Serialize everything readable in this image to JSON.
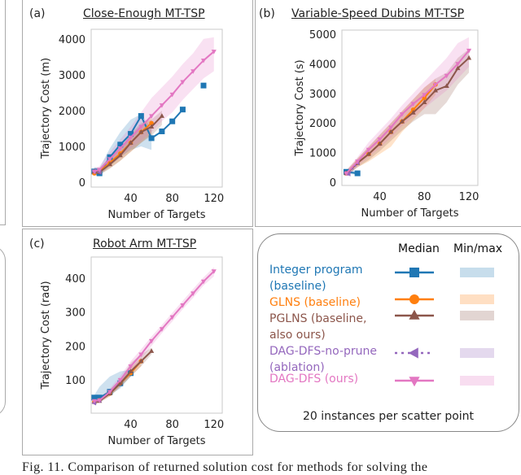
{
  "caption": "Fig. 11.  Comparison of returned solution cost for methods for solving the",
  "colors": {
    "ip": "#1f77b4",
    "glns": "#ff7f0e",
    "pglns": "#8c564b",
    "noprune": "#9467bd",
    "dagdfs": "#e377c2"
  },
  "legend": {
    "median_header": "Median",
    "minmax_header": "Min/max",
    "entries": [
      {
        "key": "ip",
        "line1": "Integer program",
        "line2": "(baseline)",
        "marker": "square",
        "dash": false
      },
      {
        "key": "glns",
        "line1": "GLNS (baseline)",
        "line2": "",
        "marker": "circle",
        "dash": false
      },
      {
        "key": "pglns",
        "line1": "PGLNS (baseline,",
        "line2": "also ours)",
        "marker": "triangle-up",
        "dash": false
      },
      {
        "key": "noprune",
        "line1": "DAG-DFS-no-prune",
        "line2": "(ablation)",
        "marker": "triangle-left",
        "dash": true
      },
      {
        "key": "dagdfs",
        "line1": "DAG-DFS (ours)",
        "line2": "",
        "marker": "triangle-down",
        "dash": false
      }
    ],
    "footer": "20 instances per scatter point"
  },
  "chart_data": [
    {
      "type": "line",
      "panel": "(a)",
      "title": "Close-Enough MT-TSP",
      "xlabel": "Number of Targets",
      "ylabel": "Trajectory Cost (m)",
      "xlim": [
        2,
        128
      ],
      "ylim": [
        -135,
        4270
      ],
      "xticks": [
        40,
        80,
        120
      ],
      "yticks": [
        0,
        1000,
        2000,
        3000,
        4000
      ],
      "grid": false,
      "series": [
        {
          "key": "ip",
          "x": [
            5,
            10,
            20,
            30,
            40,
            50,
            60,
            70,
            80,
            90,
            110
          ],
          "median": [
            300,
            250,
            700,
            1050,
            1350,
            1850,
            1230,
            1420,
            1700,
            2030,
            2700
          ],
          "min": [
            200,
            180,
            450,
            700,
            900,
            1000,
            900,
            null,
            null,
            null,
            null
          ],
          "max": [
            420,
            400,
            950,
            1400,
            1750,
            1900,
            1500,
            null,
            null,
            null,
            null
          ]
        },
        {
          "key": "glns",
          "x": [
            5,
            10,
            20,
            30,
            40,
            50,
            60
          ],
          "median": [
            250,
            300,
            550,
            800,
            1100,
            1400,
            1650
          ],
          "min": [
            180,
            220,
            400,
            600,
            850,
            1100,
            1350
          ],
          "max": [
            350,
            400,
            700,
            1000,
            1300,
            1600,
            1800
          ]
        },
        {
          "key": "pglns",
          "x": [
            5,
            10,
            20,
            30,
            40,
            50,
            60,
            70
          ],
          "median": [
            300,
            280,
            500,
            750,
            1100,
            1400,
            1550,
            1850
          ],
          "min": [
            200,
            200,
            380,
            600,
            850,
            1100,
            1300,
            1600
          ],
          "max": [
            400,
            380,
            700,
            950,
            1350,
            1650,
            1750,
            2000
          ]
        },
        {
          "key": "noprune",
          "x": [
            5,
            10
          ],
          "median": [
            300,
            280
          ],
          "min": [
            220,
            210
          ],
          "max": [
            380,
            360
          ]
        },
        {
          "key": "dagdfs",
          "x": [
            5,
            10,
            20,
            30,
            40,
            50,
            60,
            70,
            80,
            90,
            100,
            110,
            120
          ],
          "median": [
            300,
            350,
            650,
            950,
            1250,
            1550,
            1850,
            2150,
            2450,
            2800,
            3100,
            3400,
            3650
          ],
          "min": [
            220,
            250,
            480,
            700,
            950,
            1150,
            1400,
            1700,
            1950,
            2300,
            2600,
            2900,
            3100
          ],
          "max": [
            400,
            450,
            850,
            1200,
            1550,
            1950,
            2350,
            2650,
            2950,
            3300,
            3600,
            4000,
            4050
          ]
        }
      ]
    },
    {
      "type": "line",
      "panel": "(b)",
      "title": "Variable-Speed Dubins MT-TSP",
      "xlabel": "Number of Targets",
      "ylabel": "Trajectory Cost (s)",
      "xlim": [
        6,
        128
      ],
      "ylim": [
        -110,
        5140
      ],
      "xticks": [
        40,
        80,
        120
      ],
      "yticks": [
        0,
        1000,
        2000,
        3000,
        4000,
        5000
      ],
      "grid": false,
      "series": [
        {
          "key": "ip",
          "x": [
            10,
            20
          ],
          "median": [
            350,
            300
          ],
          "min": [
            280,
            250
          ],
          "max": [
            420,
            380
          ]
        },
        {
          "key": "glns",
          "x": [
            10,
            20,
            30,
            40,
            50,
            60,
            70,
            80,
            90
          ],
          "median": [
            300,
            650,
            950,
            1300,
            1700,
            2050,
            2450,
            2850,
            3300
          ],
          "min": [
            220,
            500,
            700,
            950,
            1200,
            1700,
            2100,
            2500,
            2950
          ],
          "max": [
            400,
            800,
            1200,
            1600,
            2000,
            2400,
            2800,
            3200,
            3500
          ]
        },
        {
          "key": "pglns",
          "x": [
            10,
            20,
            30,
            40,
            50,
            60,
            70,
            80,
            90,
            100,
            110,
            120
          ],
          "median": [
            300,
            650,
            950,
            1300,
            1700,
            2050,
            2350,
            2700,
            3100,
            3250,
            3850,
            4200
          ],
          "min": [
            220,
            500,
            750,
            1050,
            1400,
            1750,
            2050,
            2300,
            2300,
            2700,
            3300,
            3700
          ],
          "max": [
            400,
            800,
            1200,
            1600,
            2000,
            2400,
            2800,
            3200,
            3500,
            3700,
            4200,
            4500
          ]
        },
        {
          "key": "noprune",
          "x": [
            10,
            12,
            20
          ],
          "median": [
            300,
            280,
            650
          ],
          "min": [
            240,
            220,
            550
          ],
          "max": [
            380,
            350,
            750
          ]
        },
        {
          "key": "dagdfs",
          "x": [
            10,
            20,
            30,
            40,
            50,
            60,
            70,
            80,
            90,
            100,
            110,
            120
          ],
          "median": [
            300,
            700,
            1100,
            1450,
            1850,
            2300,
            2650,
            2950,
            3300,
            3600,
            4000,
            4450
          ],
          "min": [
            220,
            550,
            850,
            1150,
            1500,
            1900,
            2200,
            2500,
            2800,
            3100,
            3500,
            3900
          ],
          "max": [
            400,
            850,
            1350,
            1750,
            2150,
            2600,
            3000,
            3400,
            3800,
            4200,
            4700,
            4900
          ]
        }
      ]
    },
    {
      "type": "line",
      "panel": "(c)",
      "title": "Robot Arm MT-TSP",
      "xlabel": "Number of Targets",
      "ylabel": "Trajectory Cost (rad)",
      "xlim": [
        2,
        128
      ],
      "ylim": [
        2,
        462
      ],
      "xticks": [
        40,
        80,
        120
      ],
      "yticks": [
        100,
        200,
        300,
        400
      ],
      "grid": false,
      "series": [
        {
          "key": "ip",
          "x": [
            5,
            10,
            20,
            30,
            40
          ],
          "median": [
            48,
            48,
            65,
            90,
            120
          ],
          "min": [
            42,
            42,
            55,
            75,
            110
          ],
          "max": [
            55,
            80,
            110,
            125,
            130
          ]
        },
        {
          "key": "glns",
          "x": [
            5,
            10,
            20,
            30,
            40,
            50
          ],
          "median": [
            35,
            40,
            60,
            90,
            120,
            155
          ],
          "min": [
            30,
            34,
            52,
            80,
            110,
            140
          ],
          "max": [
            42,
            48,
            70,
            100,
            135,
            165
          ]
        },
        {
          "key": "pglns",
          "x": [
            5,
            10,
            20,
            30,
            40,
            50,
            60
          ],
          "median": [
            35,
            38,
            60,
            90,
            125,
            155,
            185
          ],
          "min": [
            30,
            33,
            52,
            80,
            110,
            140,
            175
          ],
          "max": [
            42,
            46,
            72,
            102,
            150,
            175,
            195
          ]
        },
        {
          "key": "noprune",
          "x": [
            5,
            10
          ],
          "median": [
            32,
            40
          ],
          "min": [
            28,
            34
          ],
          "max": [
            38,
            46
          ]
        },
        {
          "key": "dagdfs",
          "x": [
            5,
            10,
            20,
            30,
            40,
            50,
            60,
            70,
            80,
            90,
            100,
            110,
            120
          ],
          "median": [
            38,
            40,
            65,
            100,
            140,
            175,
            215,
            250,
            285,
            320,
            355,
            390,
            420
          ],
          "min": [
            32,
            34,
            56,
            88,
            125,
            160,
            200,
            238,
            272,
            308,
            342,
            378,
            405
          ],
          "max": [
            45,
            48,
            75,
            112,
            155,
            190,
            228,
            262,
            298,
            333,
            368,
            402,
            432
          ]
        }
      ]
    }
  ]
}
